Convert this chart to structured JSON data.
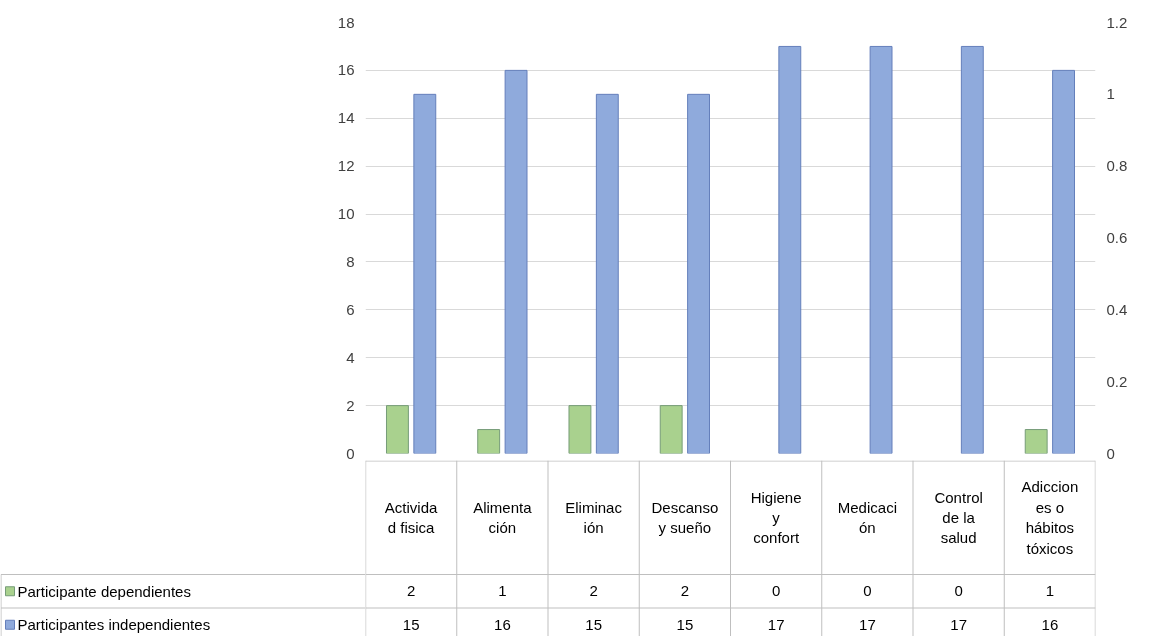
{
  "chart_data": {
    "type": "bar",
    "categories": [
      "Actividad fisica",
      "Alimentación",
      "Eliminación",
      "Descanso y sueño",
      "Higiene y confort",
      "Medicación",
      "Control de la salud",
      "Adicciones o hábitos tóxicos"
    ],
    "series": [
      {
        "name": "Participante dependientes",
        "color": "#a9d18e",
        "values": [
          2,
          1,
          2,
          2,
          0,
          0,
          0,
          1
        ]
      },
      {
        "name": "Participantes independientes",
        "color": "#8faadc",
        "values": [
          15,
          16,
          15,
          15,
          17,
          17,
          17,
          16
        ]
      }
    ],
    "ylim": [
      0,
      18
    ],
    "yticks": [
      0,
      2,
      4,
      6,
      8,
      10,
      12,
      14,
      16,
      18
    ],
    "y2lim": [
      0,
      1.2
    ],
    "y2ticks": [
      0,
      0.2,
      0.4,
      0.6,
      0.8,
      1,
      1.2
    ],
    "grid": "y",
    "legend": "bottom",
    "data_labels": true
  }
}
